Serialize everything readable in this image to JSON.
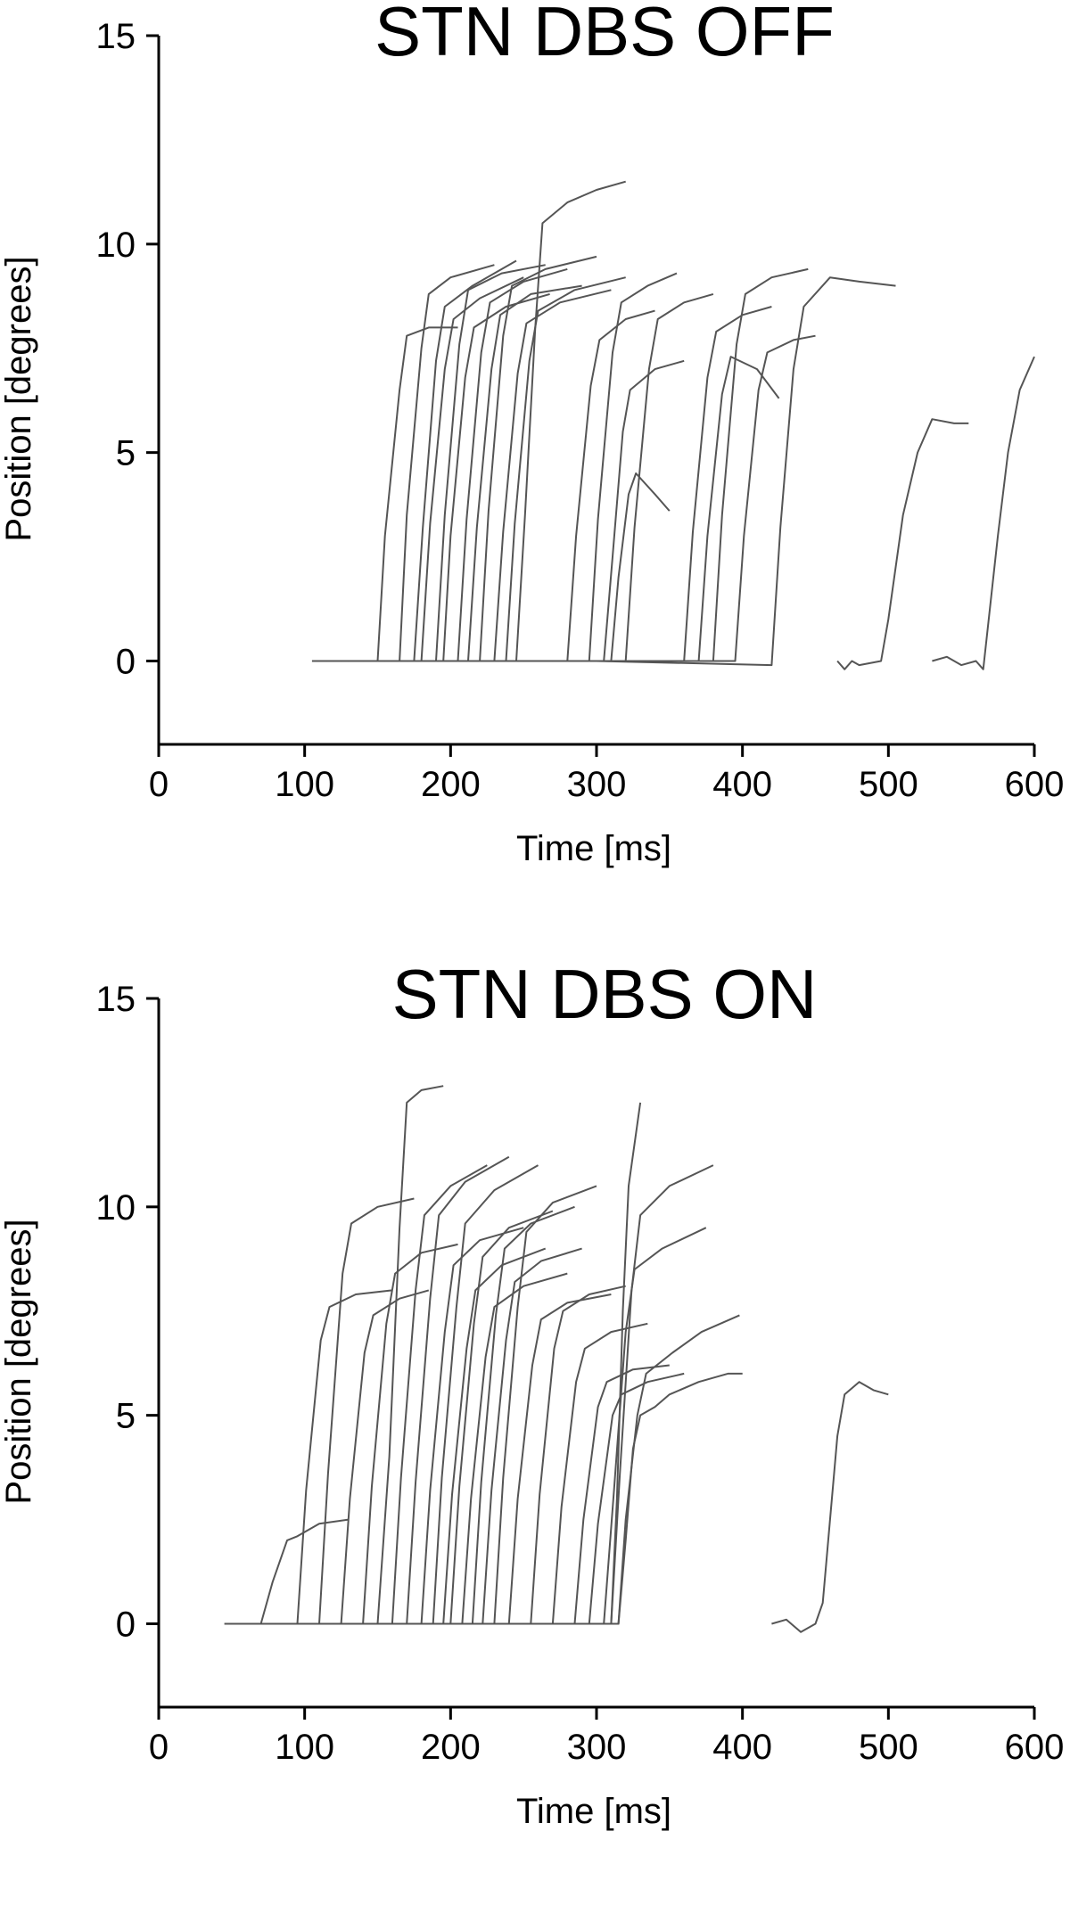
{
  "chart_data": [
    {
      "type": "line",
      "title": "STN DBS OFF",
      "xlabel": "Time [ms]",
      "ylabel": "Position [degrees]",
      "xlim": [
        0,
        600
      ],
      "ylim": [
        -2,
        15
      ],
      "xticks": [
        0,
        100,
        200,
        300,
        400,
        500,
        600
      ],
      "yticks": [
        0,
        5,
        10,
        15
      ],
      "grid": false,
      "line_color": "#555555",
      "series": [
        {
          "x": [
            105,
            150,
            155,
            165,
            170,
            185,
            205
          ],
          "y": [
            0,
            0,
            3,
            6.5,
            7.8,
            8.0,
            8.0
          ]
        },
        {
          "x": [
            110,
            165,
            170,
            180,
            185,
            200,
            230
          ],
          "y": [
            0,
            0,
            3.5,
            7.5,
            8.8,
            9.2,
            9.5
          ]
        },
        {
          "x": [
            115,
            175,
            181,
            190,
            196,
            215,
            245
          ],
          "y": [
            0,
            0,
            3.2,
            7.2,
            8.5,
            9.0,
            9.6
          ]
        },
        {
          "x": [
            120,
            180,
            186,
            196,
            202,
            220,
            250
          ],
          "y": [
            0,
            0,
            3.3,
            7.0,
            8.2,
            8.7,
            9.2
          ]
        },
        {
          "x": [
            125,
            190,
            196,
            206,
            212,
            235,
            265
          ],
          "y": [
            0,
            0,
            3.5,
            7.6,
            8.9,
            9.3,
            9.5
          ]
        },
        {
          "x": [
            130,
            195,
            200,
            210,
            216,
            238,
            268
          ],
          "y": [
            0,
            0,
            3.0,
            6.8,
            8.0,
            8.5,
            8.8
          ]
        },
        {
          "x": [
            135,
            205,
            211,
            221,
            227,
            250,
            280
          ],
          "y": [
            0,
            0,
            3.4,
            7.4,
            8.6,
            9.1,
            9.4
          ]
        },
        {
          "x": [
            140,
            212,
            218,
            228,
            234,
            255,
            290
          ],
          "y": [
            0,
            0,
            3.2,
            7.0,
            8.3,
            8.8,
            9.0
          ]
        },
        {
          "x": [
            145,
            220,
            226,
            236,
            242,
            265,
            300
          ],
          "y": [
            0,
            0,
            3.6,
            7.8,
            9.0,
            9.4,
            9.7
          ]
        },
        {
          "x": [
            150,
            230,
            236,
            246,
            252,
            275,
            310
          ],
          "y": [
            0,
            0,
            3.1,
            6.9,
            8.1,
            8.6,
            8.9
          ]
        },
        {
          "x": [
            155,
            238,
            244,
            254,
            260,
            285,
            320
          ],
          "y": [
            0,
            0,
            3.3,
            7.2,
            8.4,
            8.9,
            9.2
          ]
        },
        {
          "x": [
            160,
            245,
            251,
            258,
            263,
            280,
            300,
            320
          ],
          "y": [
            0,
            0,
            3.5,
            8.0,
            10.5,
            11.0,
            11.3,
            11.5
          ]
        },
        {
          "x": [
            170,
            280,
            286,
            296,
            302,
            320,
            340
          ],
          "y": [
            0,
            0,
            3.0,
            6.6,
            7.7,
            8.2,
            8.4
          ]
        },
        {
          "x": [
            180,
            295,
            301,
            311,
            317,
            335,
            355
          ],
          "y": [
            0,
            0,
            3.4,
            7.4,
            8.6,
            9.0,
            9.3
          ]
        },
        {
          "x": [
            190,
            305,
            311,
            318,
            323,
            340,
            360
          ],
          "y": [
            0,
            0,
            2.5,
            5.5,
            6.5,
            7.0,
            7.2
          ]
        },
        {
          "x": [
            200,
            310,
            315,
            322,
            327,
            340,
            350
          ],
          "y": [
            0,
            0,
            2.0,
            4.0,
            4.5,
            4.0,
            3.6
          ]
        },
        {
          "x": [
            210,
            320,
            326,
            336,
            342,
            360,
            380
          ],
          "y": [
            0,
            0,
            3.2,
            7.0,
            8.2,
            8.6,
            8.8
          ]
        },
        {
          "x": [
            250,
            360,
            366,
            376,
            382,
            400,
            420
          ],
          "y": [
            0,
            0,
            3.1,
            6.8,
            7.9,
            8.3,
            8.5
          ]
        },
        {
          "x": [
            260,
            370,
            376,
            386,
            392,
            410,
            425
          ],
          "y": [
            0,
            0,
            3.0,
            6.4,
            7.3,
            7.0,
            6.3
          ]
        },
        {
          "x": [
            270,
            380,
            386,
            396,
            402,
            420,
            445
          ],
          "y": [
            0,
            0,
            3.5,
            7.6,
            8.8,
            9.2,
            9.4
          ]
        },
        {
          "x": [
            290,
            395,
            401,
            411,
            417,
            435,
            450
          ],
          "y": [
            0,
            0,
            3.0,
            6.5,
            7.4,
            7.7,
            7.8
          ]
        },
        {
          "x": [
            300,
            420,
            426,
            435,
            442,
            460,
            480,
            505
          ],
          "y": [
            0,
            -0.1,
            3.2,
            7.0,
            8.5,
            9.2,
            9.1,
            9.0
          ]
        },
        {
          "x": [
            465,
            470,
            475,
            480,
            495,
            500,
            510,
            520,
            530,
            545,
            555
          ],
          "y": [
            0,
            -0.2,
            0,
            -0.1,
            0,
            1.0,
            3.5,
            5.0,
            5.8,
            5.7,
            5.7
          ]
        },
        {
          "x": [
            530,
            540,
            550,
            560,
            565,
            575,
            582,
            590,
            600
          ],
          "y": [
            0,
            0.1,
            -0.1,
            0,
            -0.2,
            3.0,
            5.0,
            6.5,
            7.3
          ]
        }
      ]
    },
    {
      "type": "line",
      "title": "STN DBS ON",
      "xlabel": "Time [ms]",
      "ylabel": "Position [degrees]",
      "xlim": [
        0,
        600
      ],
      "ylim": [
        -2,
        15
      ],
      "xticks": [
        0,
        100,
        200,
        300,
        400,
        500,
        600
      ],
      "yticks": [
        0,
        5,
        10,
        15
      ],
      "grid": false,
      "line_color": "#555555",
      "series": [
        {
          "x": [
            45,
            70,
            78,
            88,
            95,
            110,
            130
          ],
          "y": [
            0,
            0,
            1.0,
            2.0,
            2.1,
            2.4,
            2.5
          ]
        },
        {
          "x": [
            50,
            95,
            101,
            111,
            117,
            135,
            160
          ],
          "y": [
            0,
            0,
            3.2,
            6.8,
            7.6,
            7.9,
            8.0
          ]
        },
        {
          "x": [
            55,
            110,
            116,
            126,
            132,
            150,
            175
          ],
          "y": [
            0,
            0,
            3.6,
            8.4,
            9.6,
            10.0,
            10.2
          ]
        },
        {
          "x": [
            60,
            125,
            131,
            141,
            147,
            165,
            185
          ],
          "y": [
            0,
            0,
            3.0,
            6.5,
            7.4,
            7.8,
            8.0
          ]
        },
        {
          "x": [
            70,
            140,
            146,
            156,
            162,
            180,
            205
          ],
          "y": [
            0,
            0,
            3.3,
            7.2,
            8.4,
            8.9,
            9.1
          ]
        },
        {
          "x": [
            80,
            150,
            158,
            165,
            170,
            180,
            195
          ],
          "y": [
            0,
            0,
            4.0,
            9.5,
            12.5,
            12.8,
            12.9
          ]
        },
        {
          "x": [
            90,
            160,
            166,
            176,
            182,
            200,
            225
          ],
          "y": [
            0,
            0,
            3.5,
            8.0,
            9.8,
            10.5,
            11.0
          ]
        },
        {
          "x": [
            100,
            170,
            176,
            186,
            192,
            210,
            240
          ],
          "y": [
            0,
            0,
            3.4,
            7.8,
            9.8,
            10.6,
            11.2
          ]
        },
        {
          "x": [
            110,
            180,
            186,
            196,
            202,
            220,
            250
          ],
          "y": [
            0,
            0,
            3.2,
            7.0,
            8.6,
            9.2,
            9.5
          ]
        },
        {
          "x": [
            120,
            188,
            194,
            204,
            210,
            230,
            260
          ],
          "y": [
            0,
            0,
            3.5,
            7.6,
            9.6,
            10.4,
            11.0
          ]
        },
        {
          "x": [
            130,
            195,
            201,
            211,
            217,
            235,
            265
          ],
          "y": [
            0,
            0,
            3.1,
            6.6,
            8.0,
            8.6,
            9.0
          ]
        },
        {
          "x": [
            140,
            200,
            206,
            216,
            222,
            240,
            270
          ],
          "y": [
            0,
            0,
            3.3,
            7.2,
            8.8,
            9.5,
            9.9
          ]
        },
        {
          "x": [
            150,
            208,
            214,
            224,
            230,
            250,
            280
          ],
          "y": [
            0,
            0,
            3.0,
            6.4,
            7.6,
            8.1,
            8.4
          ]
        },
        {
          "x": [
            160,
            215,
            221,
            231,
            237,
            255,
            285
          ],
          "y": [
            0,
            0,
            3.4,
            7.4,
            9.0,
            9.6,
            10.0
          ]
        },
        {
          "x": [
            170,
            222,
            228,
            238,
            244,
            262,
            290
          ],
          "y": [
            0,
            0,
            3.2,
            6.8,
            8.2,
            8.7,
            9.0
          ]
        },
        {
          "x": [
            180,
            230,
            236,
            246,
            252,
            270,
            300
          ],
          "y": [
            0,
            0,
            3.5,
            7.6,
            9.4,
            10.1,
            10.5
          ]
        },
        {
          "x": [
            190,
            240,
            246,
            256,
            262,
            280,
            310
          ],
          "y": [
            0,
            0,
            3.0,
            6.2,
            7.3,
            7.7,
            7.9
          ]
        },
        {
          "x": [
            200,
            255,
            261,
            271,
            277,
            295,
            320
          ],
          "y": [
            0,
            0,
            3.1,
            6.6,
            7.5,
            7.9,
            8.1
          ]
        },
        {
          "x": [
            210,
            270,
            276,
            286,
            292,
            310,
            335
          ],
          "y": [
            0,
            0,
            2.8,
            5.8,
            6.6,
            7.0,
            7.2
          ]
        },
        {
          "x": [
            220,
            285,
            291,
            301,
            307,
            325,
            350
          ],
          "y": [
            0,
            0,
            2.5,
            5.2,
            5.8,
            6.1,
            6.2
          ]
        },
        {
          "x": [
            230,
            295,
            301,
            311,
            317,
            335,
            360
          ],
          "y": [
            0,
            0,
            2.4,
            5.0,
            5.5,
            5.8,
            6.0
          ]
        },
        {
          "x": [
            240,
            305,
            312,
            320,
            326,
            345,
            375
          ],
          "y": [
            0,
            0,
            3.2,
            7.0,
            8.5,
            9.0,
            9.5
          ]
        },
        {
          "x": [
            250,
            310,
            316,
            324,
            330,
            350,
            380
          ],
          "y": [
            0,
            0,
            3.6,
            8.0,
            9.8,
            10.5,
            11.0
          ]
        },
        {
          "x": [
            255,
            315,
            320,
            328,
            334,
            352,
            372,
            398
          ],
          "y": [
            0,
            0,
            2.5,
            5.0,
            6.0,
            6.5,
            7.0,
            7.4
          ]
        },
        {
          "x": [
            260,
            315,
            320,
            325,
            330,
            340,
            350,
            370,
            390,
            400
          ],
          "y": [
            0,
            0,
            2.0,
            4.2,
            5.0,
            5.2,
            5.5,
            5.8,
            6.0,
            6.0
          ]
        },
        {
          "x": [
            265,
            310,
            314,
            318,
            322,
            330
          ],
          "y": [
            0,
            0,
            3.0,
            7.5,
            10.5,
            12.5
          ]
        },
        {
          "x": [
            420,
            430,
            440,
            450,
            455,
            460,
            465,
            470,
            480,
            490,
            500
          ],
          "y": [
            0,
            0.1,
            -0.2,
            0,
            0.5,
            2.5,
            4.5,
            5.5,
            5.8,
            5.6,
            5.5
          ]
        }
      ]
    }
  ]
}
